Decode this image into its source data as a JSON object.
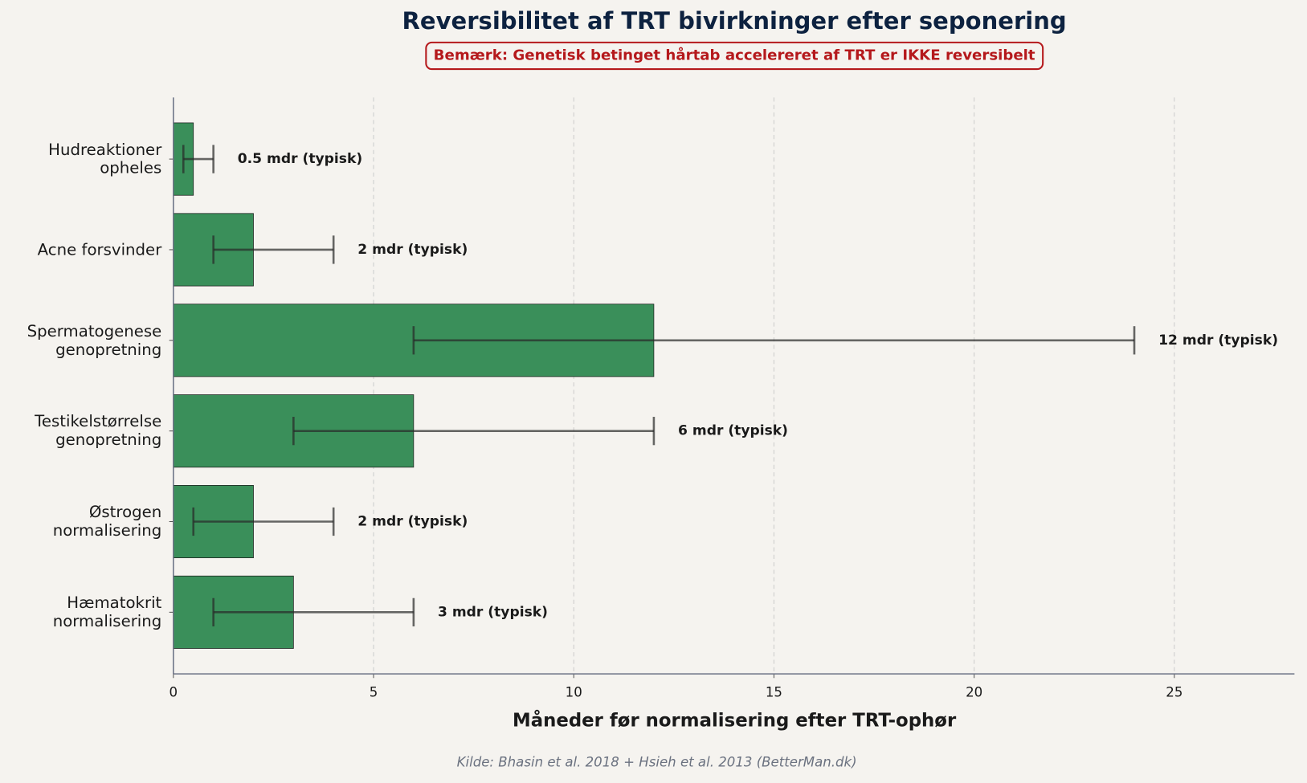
{
  "chart_data": {
    "type": "bar",
    "orientation": "horizontal",
    "title": "Reversibilitet af TRT bivirkninger efter seponering",
    "note": "Bemærk: Genetisk betinget hårtab accelereret af TRT er IKKE reversibelt",
    "categories": [
      "Hudreaktioner\nopheles",
      "Acne forsvinder",
      "Spermatogenese\ngenopretning",
      "Testikelstørrelse\ngenopretning",
      "Østrogen\nnormalisering",
      "Hæmatokrit\nnormalisering"
    ],
    "values": [
      0.5,
      2,
      12,
      6,
      2,
      3
    ],
    "range_low": [
      0.25,
      1,
      6,
      3,
      0.5,
      1
    ],
    "range_high": [
      1,
      4,
      24,
      12,
      4,
      6
    ],
    "value_labels": [
      "0.5 mdr (typisk)",
      "2 mdr (typisk)",
      "12 mdr (typisk)",
      "6 mdr (typisk)",
      "2 mdr (typisk)",
      "3 mdr (typisk)"
    ],
    "color": "#3a8f5a",
    "xlabel": "Måneder før normalisering efter TRT-ophør",
    "xlim": [
      0,
      28
    ],
    "xticks": [
      0,
      5,
      10,
      15,
      20,
      25
    ],
    "grid": true,
    "source": "Kilde: Bhasin et al. 2018 + Hsieh et al. 2013 (BetterMan.dk)"
  }
}
